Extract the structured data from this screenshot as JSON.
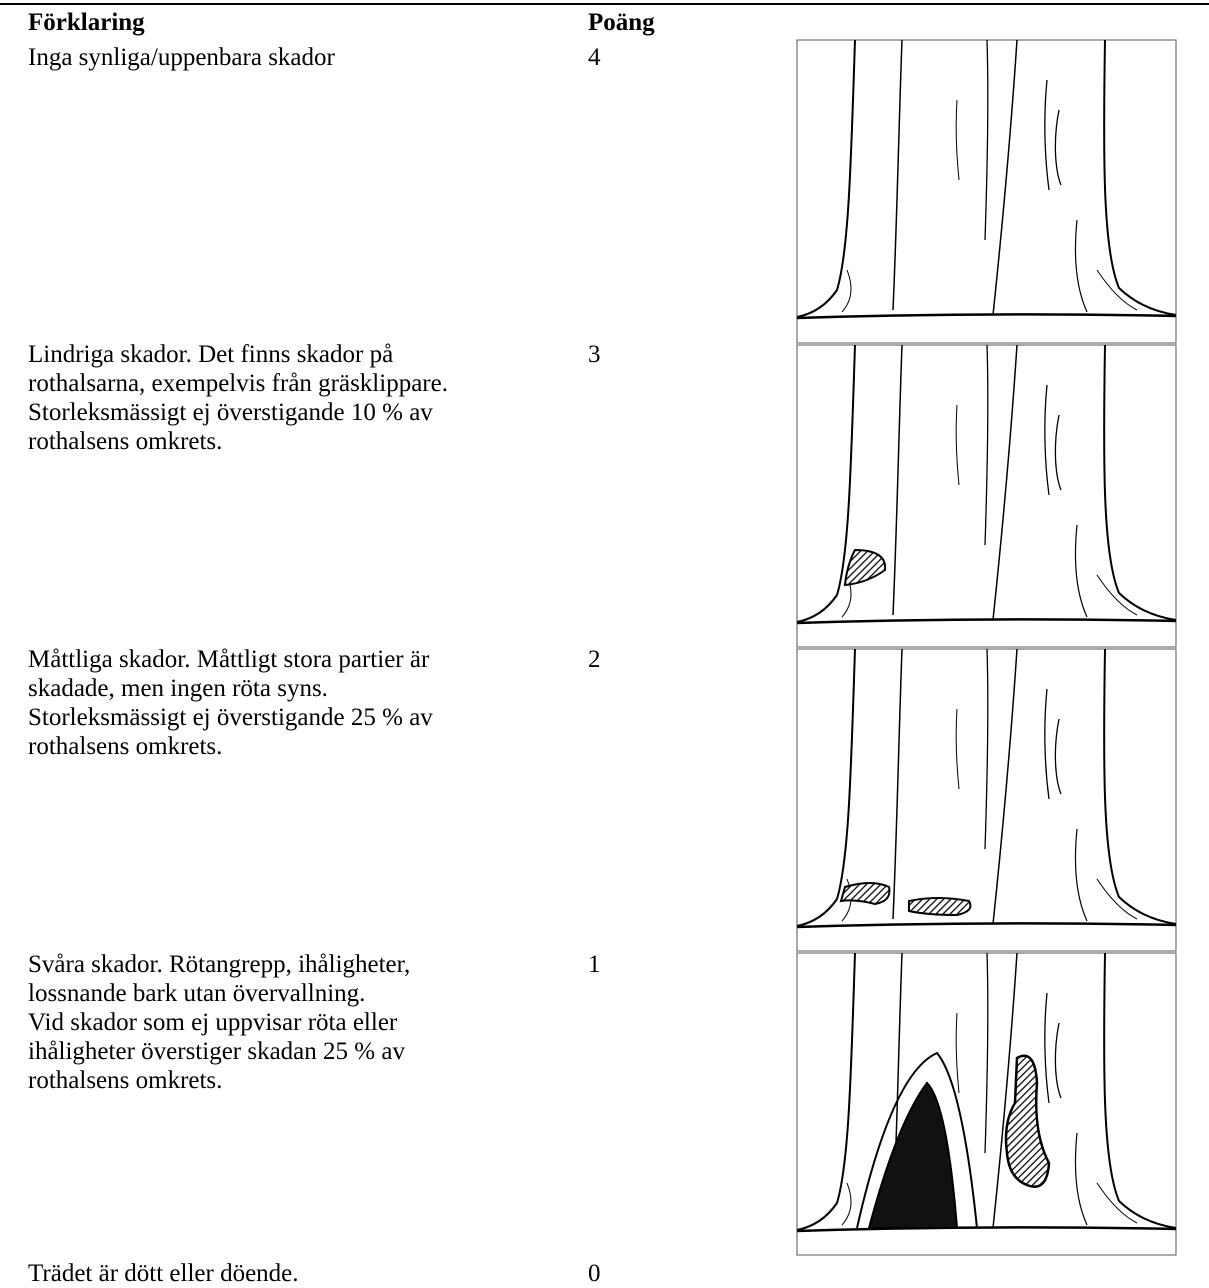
{
  "header": {
    "explanation": "Förklaring",
    "score": "Poäng"
  },
  "rows": [
    {
      "explanation": [
        "Inga synliga/uppenbara skador"
      ],
      "score": 4
    },
    {
      "explanation": [
        "Lindriga skador. Det finns skador på",
        "rothalsarna, exempelvis från gräsklippare.",
        "Storleksmässigt ej överstigande 10 % av",
        "rothalsens omkrets."
      ],
      "score": 3
    },
    {
      "explanation": [
        "Måttliga skador. Måttligt stora partier är",
        "skadade, men ingen röta syns.",
        "Storleksmässigt ej överstigande 25 % av",
        "rothalsens omkrets."
      ],
      "score": 2
    },
    {
      "explanation": [
        "Svåra skador. Rötangrepp, ihåligheter,",
        "lossnande bark utan övervallning.",
        "Vid skador som ej uppvisar röta eller",
        "ihåligheter överstiger skadan 25 % av",
        "rothalsens omkrets."
      ],
      "score": 1
    },
    {
      "explanation": [
        "Trädet är dött eller döende."
      ],
      "score": 0
    }
  ]
}
